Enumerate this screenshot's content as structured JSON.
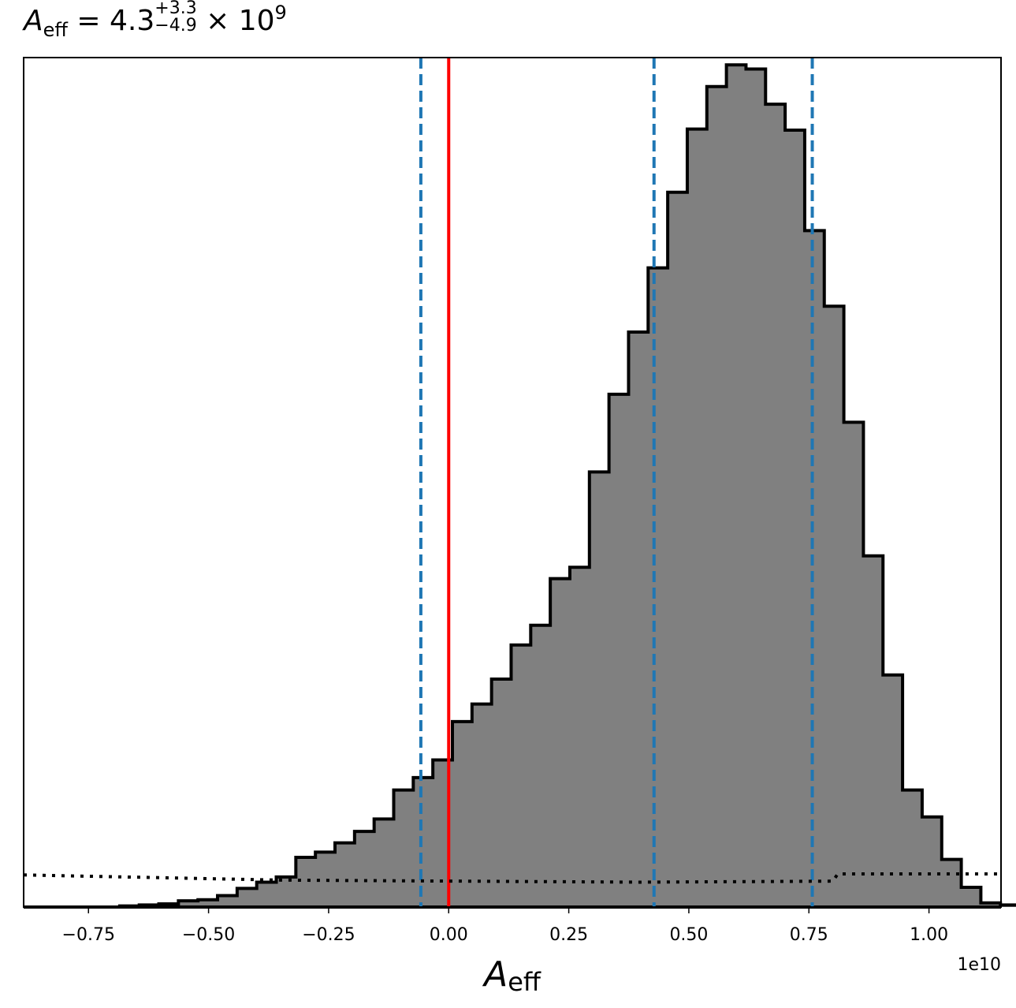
{
  "title": {
    "symbol": "A",
    "symbol_sub": "eff",
    "equals": " = 4.3",
    "err_plus": "+3.3",
    "err_minus": "−4.9",
    "times": " × 10",
    "exponent": "9"
  },
  "chart_data": {
    "type": "histogram",
    "xlabel_symbol": "A",
    "xlabel_sub": "eff",
    "offset_label": "1e10",
    "xlim": [
      -0.885,
      1.15
    ],
    "xticks": [
      -0.75,
      -0.5,
      -0.25,
      0.0,
      0.25,
      0.5,
      0.75,
      1.0
    ],
    "xtick_labels": [
      "−0.75",
      "−0.50",
      "−0.25",
      "0.00",
      "0.25",
      "0.50",
      "0.75",
      "1.00"
    ],
    "yticks_visible": false,
    "bin_width": 0.04075,
    "bins_left_start": -0.685,
    "counts": [
      0.1,
      0.2,
      0.3,
      0.6,
      0.7,
      1.1,
      1.8,
      2.4,
      2.9,
      4.8,
      5.3,
      6.2,
      7.3,
      8.5,
      11.3,
      12.5,
      14.2,
      17.9,
      19.6,
      22.0,
      25.3,
      27.2,
      31.7,
      32.8,
      42.0,
      49.5,
      55.5,
      61.7,
      69.0,
      75.1,
      79.2,
      81.3,
      80.9,
      77.5,
      75.0,
      65.3,
      58.0,
      46.8,
      33.9,
      22.4,
      11.3,
      8.7,
      4.6,
      1.9,
      0.4,
      0.2,
      0.05
    ],
    "fill_color": "#808080",
    "edge_color": "#000000",
    "vlines": [
      {
        "x": 0.0,
        "color": "#ff0000",
        "style": "solid"
      },
      {
        "x": -0.058,
        "color": "#1f77b4",
        "style": "dashed"
      },
      {
        "x": 0.4275,
        "color": "#1f77b4",
        "style": "dashed"
      },
      {
        "x": 0.757,
        "color": "#1f77b4",
        "style": "dashed"
      }
    ],
    "prior_line": {
      "style": "dotted",
      "color": "#000000",
      "points": [
        [
          -0.885,
          3.1
        ],
        [
          -0.35,
          2.6
        ],
        [
          0.4,
          2.4
        ],
        [
          0.8,
          2.5
        ],
        [
          0.81,
          3.2
        ],
        [
          1.15,
          3.2
        ]
      ]
    }
  }
}
